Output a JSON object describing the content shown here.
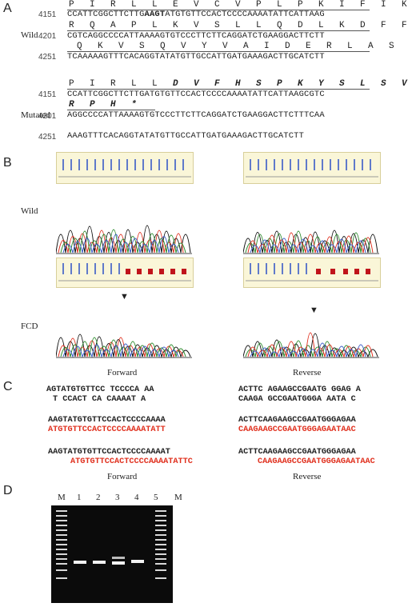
{
  "panels": {
    "a": "A",
    "b": "B",
    "c": "C",
    "d": "D"
  },
  "panelA": {
    "wild_label": "Wild",
    "mutated_label": "Mutated",
    "wild_rows": [
      {
        "aa": "P I R L L E V C V P L P K I F I K",
        "num": "4151",
        "seq_pre": "CCATTCGGCTTCTTG",
        "seq_bold": "AAGT",
        "seq_post": "ATGTGTTCCACTCCCCAAAATATTCATTAAG"
      },
      {
        "aa": "R Q A P L K V S L L Q D L K D F F",
        "num": "4201",
        "seq": "CGTCAGGCCCCATTAAAAGTGTCCCTTCTTCAGGATCTGAAGGACTTCTT"
      },
      {
        "aa": "Q K V S Q V Y V A I D E R L A S",
        "num": "4251",
        "seq": "TCAAAAAGTTTCACAGGTATATGTTGCCATTGATGAAAGACTTGCATCTT"
      }
    ],
    "mut_rows": [
      {
        "aa_plain": "P I R L L ",
        "aa_bold": "D V F H S P K Y S L S V",
        "num": "4151",
        "seq": "CCATTCGGCTTCTTGATGTGTTCCACTCCCCAAAATATTCATTAAGCGTC"
      },
      {
        "aa_bold": "R P H *",
        "num": "4201",
        "seq": "AGGCCCCATTAAAAGTGTCCCTTCTTCAGGATCTGAAGGACTTCTTTCAA"
      },
      {
        "num": "4251",
        "seq": "AAAGTTTCACAGGTATATGTTGCCATTGATGAAAGACTTGCATCTT"
      }
    ]
  },
  "panelB": {
    "wild_label": "Wild",
    "fcd_label": "FCD",
    "forward_label": "Forward",
    "reverse_label": "Reverse"
  },
  "panelC": {
    "fwd_top1": "AGTATGTGTTCC TCCCCA AA",
    "fwd_top2": "T CCACT CA CAAAAT A",
    "fwd_wild": "AAGTATGTGTTCCACTCCCCAAAA",
    "fwd_wild_red": "ATGTGTTCCACTCCCCAAAATATT",
    "fwd_mut": "AAGTATGTGTTCCACTCCCCAAAAT",
    "fwd_mut_red": "ATGTGTTCCACTCCCCAAAATATTC",
    "rev_top1": "ACTTC AGAAGCCGAATG GGAG A",
    "rev_top2": "CAAGA GCCGAATGGGA AATA C",
    "rev_wild": "ACTTCAAGAAGCCGAATGGGAGAA",
    "rev_wild_red": "CAAGAAGCCGAATGGGAGAATAAC",
    "rev_mut": "ACTTCAAGAAGCCGAATGGGAGAA",
    "rev_mut_red": "CAAGAAGCCGAATGGGAGAATAAC",
    "forward_label": "Forward",
    "reverse_label": "Reverse"
  },
  "panelD": {
    "lanes": [
      "M",
      "1",
      "2",
      "3",
      "4",
      "5",
      "M"
    ]
  },
  "colors": {
    "red": "#e0301e",
    "gel": "#0b0b0b"
  }
}
